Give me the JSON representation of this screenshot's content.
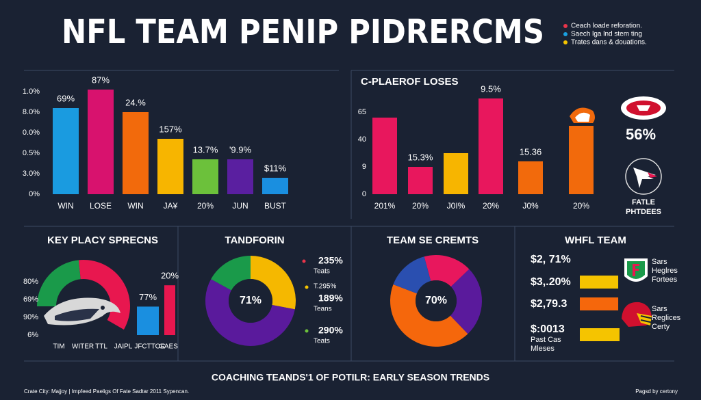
{
  "header": {
    "title": "NFL TEAM PENIP PIDRERCMS",
    "legend": [
      {
        "label": "Ceach loade reforation.",
        "color": "#e8344a"
      },
      {
        "label": "Saech lga lnd stem ting",
        "color": "#1aa0e0"
      },
      {
        "label": "Trates dans & douations.",
        "color": "#f5c400"
      }
    ]
  },
  "chart_data": [
    {
      "type": "bar",
      "categories": [
        "WIN",
        "LOSE",
        "WIN",
        "JA¥",
        "20%",
        "JUN",
        "BUST"
      ],
      "values": [
        4.2,
        5.1,
        4.0,
        2.7,
        1.7,
        1.7,
        0.8
      ],
      "value_labels": [
        "69%",
        "87%",
        "24.%",
        "157%",
        "13.7%",
        "'9.9%",
        "$11%"
      ],
      "colors": [
        "#1a9be0",
        "#d8126e",
        "#f26a0c",
        "#f7b500",
        "#6cc13b",
        "#5a1fa0",
        "#1a8fe0"
      ],
      "ylim": [
        0,
        5.3
      ],
      "yticks": [
        {
          "value": 0,
          "label": "0%"
        },
        {
          "value": 1,
          "label": "3.0%"
        },
        {
          "value": 2,
          "label": "0.5%"
        },
        {
          "value": 3,
          "label": "0.0%"
        },
        {
          "value": 4,
          "label": "8.0%"
        },
        {
          "value": 5,
          "label": "1.0%"
        }
      ]
    },
    {
      "type": "bar",
      "title": "C-PLAEROF LOSES",
      "categories": [
        "201%",
        "20%",
        "J0I%",
        "20%",
        "J0%",
        "20%"
      ],
      "values": [
        56,
        20,
        30,
        70,
        24,
        50
      ],
      "value_labels": [
        null,
        "15.3%",
        null,
        "9.5%",
        "15.36",
        null
      ],
      "colors": [
        "#e8175d",
        "#e8175d",
        "#f7b500",
        "#e8175d",
        "#f26a0c",
        "#f26a0c"
      ],
      "ylim": [
        0,
        70
      ],
      "yticks": [
        0,
        {
          "value": 20,
          "label": "9"
        },
        40,
        {
          "value": 60,
          "label": "65"
        }
      ]
    },
    {
      "type": "arch",
      "values": [
        40,
        60
      ],
      "colors": [
        "#1a9a4a",
        "#e8174f"
      ]
    },
    {
      "type": "bar",
      "title": "KEY PLACY SPRECNS",
      "categories": [
        null,
        null
      ],
      "values": [
        1.6,
        2.8
      ],
      "value_labels": [
        "77%",
        "20%"
      ],
      "colors": [
        "#1a8fe0",
        "#e8174f"
      ],
      "ylim": [
        0,
        3.2
      ],
      "yticks": [
        {
          "value": 0,
          "label": "6%"
        },
        {
          "value": 1,
          "label": "90%"
        },
        {
          "value": 2,
          "label": "69%"
        },
        {
          "value": 3,
          "label": "80%"
        }
      ],
      "x_labels": [
        "TIM",
        "WITER",
        "TTL",
        "JAIPL",
        "JFCTTOC",
        "GAES"
      ]
    },
    {
      "type": "donut",
      "title": "TANDFORIN",
      "center_label": "71%",
      "values": [
        28,
        55,
        17
      ],
      "colors": [
        "#f5b800",
        "#5a1a9c",
        "#1a9a4a"
      ],
      "annotations": [
        "235%",
        "Teats",
        "T.295%",
        "189%",
        "Teans",
        "290%",
        "Teats"
      ],
      "annotation_colors": [
        "#e8344a",
        "#f5c400",
        "#6cc13b"
      ]
    },
    {
      "type": "donut",
      "title": "TEAM SE CREMTS",
      "center_label": "70%",
      "values": [
        17,
        25,
        43,
        15
      ],
      "colors": [
        "#e8175d",
        "#5a1a9c",
        "#f5670c",
        "#2a4fb0"
      ]
    },
    {
      "type": "bar",
      "orientation": "horizontal",
      "title": "WHFL TEAM",
      "values": [
        58,
        58,
        60
      ],
      "colors": [
        "#f5c400",
        "#f5670c",
        "#f5c400"
      ],
      "xlim": [
        0,
        60
      ],
      "annotations": [
        "$2, 71%",
        "$3,.20%",
        "$2,79.3",
        "$:0013",
        "Past Cas",
        "Mleses"
      ],
      "notes": [
        "Sars",
        "Heglres",
        "Fortees",
        "Sars",
        "Reglices",
        "Certy"
      ]
    }
  ],
  "side": {
    "stat": "56%",
    "caption": [
      "FATLE",
      "PHTDEES"
    ]
  },
  "footer": {
    "title": "COACHING TEANDS'1 OF POTILR: EARLY SEASON TRENDS",
    "source": "Crate City: Majjoy | Impfeed Paeligs Of Fate Sadtar 2011 Sypencan.",
    "credit": "Pagsd by certony"
  }
}
